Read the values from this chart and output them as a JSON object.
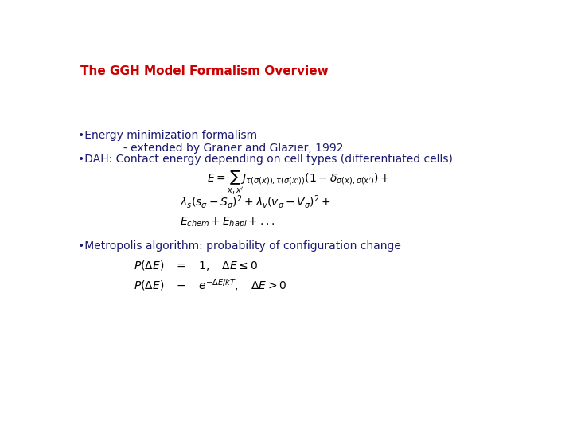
{
  "title": "The GGH Model Formalism Overview",
  "title_color": "#cc0000",
  "title_fontsize": 11,
  "background_color": "#ffffff",
  "text_color": "#1a1a6e",
  "bullet1_line1": "•Energy minimization formalism",
  "bullet1_line2": "             - extended by Graner and Glazier, 1992",
  "bullet2": "•DAH: Contact energy depending on cell types (differentiated cells)",
  "eq1": "$E = \\sum_{x,x'} J_{\\tau(\\sigma(x)),\\tau(\\sigma(x'))}(1 - \\delta_{\\sigma(x),\\sigma(x')}) +$",
  "eq2": "$\\lambda_s(s_\\sigma - S_\\sigma)^2 + \\lambda_v(v_\\sigma - V_\\sigma)^2 +$",
  "eq3": "$E_{chem} + E_{hapi} + ...$",
  "bullet3": "•Metropolis algorithm: probability of configuration change",
  "eq4": "$P(\\Delta E) \\quad = \\quad 1, \\quad \\Delta E \\leq 0$",
  "eq5": "$P(\\Delta E) \\quad - \\quad e^{-\\Delta E/kT}, \\quad \\Delta E > 0$",
  "text_fontsize": 10,
  "eq_fontsize": 10
}
